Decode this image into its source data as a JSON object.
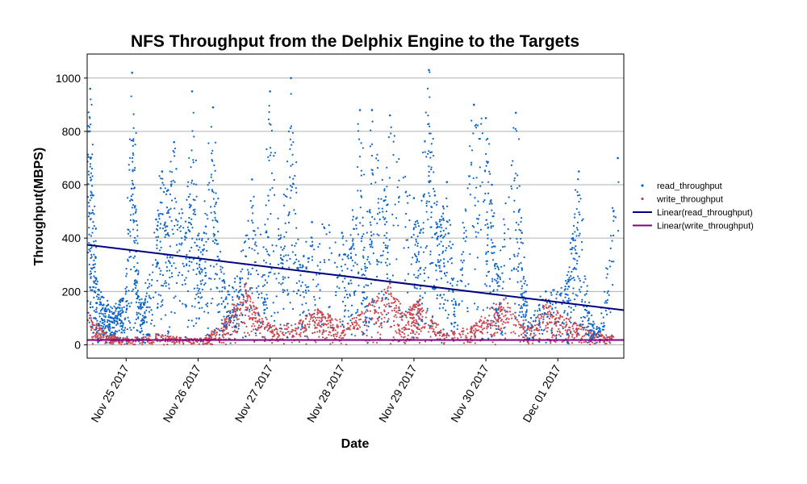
{
  "chart_data": {
    "type": "scatter",
    "title": "NFS Throughput from the Delphix Engine to the Targets",
    "xlabel": "Date",
    "ylabel": "Throughput(MBPS)",
    "x_ticks": [
      "Nov 25 2017",
      "Nov 26 2017",
      "Nov 27 2017",
      "Nov 28 2017",
      "Nov 29 2017",
      "Nov 30 2017",
      "Dec 01 2017"
    ],
    "xlim": [
      "2017-11-24 11:00",
      "2017-12-01 22:00"
    ],
    "y_ticks": [
      0,
      200,
      400,
      600,
      800,
      1000
    ],
    "ylim": [
      -50,
      1090
    ],
    "grid": "horizontal",
    "legend": "right",
    "series": [
      {
        "name": "read_throughput",
        "style": "points",
        "color": "#0a64c8",
        "points": [
          [
            "2017-11-24 11:30",
            800
          ],
          [
            "2017-11-24 12:00",
            960
          ],
          [
            "2017-11-24 13:00",
            560
          ],
          [
            "2017-11-24 14:00",
            250
          ],
          [
            "2017-11-24 16:00",
            180
          ],
          [
            "2017-11-24 18:00",
            150
          ],
          [
            "2017-11-24 20:00",
            120
          ],
          [
            "2017-11-24 22:00",
            160
          ],
          [
            "2017-11-25 00:00",
            200
          ],
          [
            "2017-11-25 02:00",
            1020
          ],
          [
            "2017-11-25 03:00",
            520
          ],
          [
            "2017-11-25 04:00",
            180
          ],
          [
            "2017-11-25 06:00",
            150
          ],
          [
            "2017-11-25 10:00",
            470
          ],
          [
            "2017-11-25 12:00",
            650
          ],
          [
            "2017-11-25 14:00",
            580
          ],
          [
            "2017-11-25 16:00",
            760
          ],
          [
            "2017-11-25 20:00",
            420
          ],
          [
            "2017-11-25 22:00",
            950
          ],
          [
            "2017-11-26 00:00",
            410
          ],
          [
            "2017-11-26 02:00",
            420
          ],
          [
            "2017-11-26 05:00",
            890
          ],
          [
            "2017-11-26 07:00",
            320
          ],
          [
            "2017-11-26 10:00",
            200
          ],
          [
            "2017-11-26 14:00",
            250
          ],
          [
            "2017-11-26 18:00",
            620
          ],
          [
            "2017-11-26 22:00",
            160
          ],
          [
            "2017-11-27 00:00",
            950
          ],
          [
            "2017-11-27 04:00",
            320
          ],
          [
            "2017-11-27 07:00",
            1000
          ],
          [
            "2017-11-27 10:00",
            300
          ],
          [
            "2017-11-27 14:00",
            460
          ],
          [
            "2017-11-28 00:00",
            420
          ],
          [
            "2017-11-28 03:00",
            360
          ],
          [
            "2017-11-28 06:00",
            880
          ],
          [
            "2017-11-28 08:00",
            250
          ],
          [
            "2017-11-28 10:00",
            880
          ],
          [
            "2017-11-28 14:00",
            540
          ],
          [
            "2017-11-28 16:00",
            860
          ],
          [
            "2017-11-29 00:00",
            550
          ],
          [
            "2017-11-29 02:00",
            420
          ],
          [
            "2017-11-29 05:00",
            1030
          ],
          [
            "2017-11-29 07:00",
            560
          ],
          [
            "2017-11-29 09:00",
            450
          ],
          [
            "2017-11-29 11:00",
            610
          ],
          [
            "2017-11-29 14:00",
            150
          ],
          [
            "2017-11-29 20:00",
            900
          ],
          [
            "2017-11-30 00:00",
            850
          ],
          [
            "2017-11-30 02:00",
            600
          ],
          [
            "2017-11-30 04:00",
            260
          ],
          [
            "2017-11-30 10:00",
            870
          ],
          [
            "2017-11-30 12:00",
            420
          ],
          [
            "2017-11-30 14:00",
            70
          ],
          [
            "2017-11-30 20:00",
            200
          ],
          [
            "2017-12-01 03:00",
            230
          ],
          [
            "2017-12-01 05:00",
            400
          ],
          [
            "2017-12-01 07:00",
            650
          ],
          [
            "2017-12-01 10:00",
            120
          ],
          [
            "2017-12-01 14:00",
            60
          ],
          [
            "2017-12-01 20:00",
            700
          ]
        ]
      },
      {
        "name": "write_throughput",
        "style": "points",
        "color": "#c84650",
        "points": [
          [
            "2017-11-24 12:00",
            110
          ],
          [
            "2017-11-24 16:00",
            60
          ],
          [
            "2017-11-24 20:00",
            30
          ],
          [
            "2017-11-25 02:00",
            20
          ],
          [
            "2017-11-25 10:00",
            40
          ],
          [
            "2017-11-25 18:00",
            25
          ],
          [
            "2017-11-26 02:00",
            20
          ],
          [
            "2017-11-26 08:00",
            80
          ],
          [
            "2017-11-26 12:00",
            150
          ],
          [
            "2017-11-26 16:00",
            230
          ],
          [
            "2017-11-26 20:00",
            120
          ],
          [
            "2017-11-27 02:00",
            60
          ],
          [
            "2017-11-27 10:00",
            90
          ],
          [
            "2017-11-27 16:00",
            130
          ],
          [
            "2017-11-27 20:00",
            110
          ],
          [
            "2017-11-28 02:00",
            80
          ],
          [
            "2017-11-28 10:00",
            160
          ],
          [
            "2017-11-28 16:00",
            230
          ],
          [
            "2017-11-28 20:00",
            120
          ],
          [
            "2017-11-29 00:00",
            150
          ],
          [
            "2017-11-29 02:00",
            170
          ],
          [
            "2017-11-29 10:00",
            40
          ],
          [
            "2017-11-29 20:00",
            70
          ],
          [
            "2017-11-30 02:00",
            140
          ],
          [
            "2017-11-30 06:00",
            170
          ],
          [
            "2017-11-30 14:00",
            60
          ],
          [
            "2017-11-30 20:00",
            170
          ],
          [
            "2017-12-01 00:00",
            120
          ],
          [
            "2017-12-01 06:00",
            80
          ],
          [
            "2017-12-01 12:00",
            50
          ],
          [
            "2017-12-01 18:00",
            30
          ]
        ]
      },
      {
        "name": "Linear(read_throughput)",
        "style": "line",
        "color": "#000080",
        "points": [
          [
            "2017-11-24 11:00",
            375
          ],
          [
            "2017-12-01 22:00",
            130
          ]
        ]
      },
      {
        "name": "Linear(write_throughput)",
        "style": "line",
        "color": "#800080",
        "points": [
          [
            "2017-11-24 11:00",
            18
          ],
          [
            "2017-12-01 22:00",
            18
          ]
        ]
      }
    ]
  }
}
